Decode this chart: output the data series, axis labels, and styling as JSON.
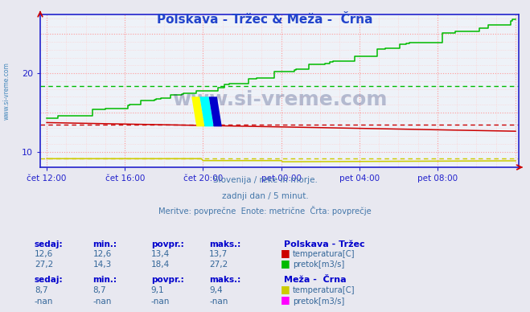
{
  "title": "Polskava - Tržec & Meža -  Črna",
  "bg_color": "#e8e8f0",
  "plot_bg_color": "#eef2f8",
  "subtitle1": "Slovenija / reke in morje.",
  "subtitle2": "zadnji dan / 5 minut.",
  "subtitle3": "Meritve: povprečne  Enote: metrične  Črta: povprečje",
  "watermark": "www.si-vreme.com",
  "station1_name": "Polskava - Tržec",
  "station2_name": "Meža -  Črna",
  "label_headers": [
    "sedaj:",
    "min.:",
    "povpr.:",
    "maks.:"
  ],
  "s1_temp_vals": [
    "12,6",
    "12,6",
    "13,4",
    "13,7"
  ],
  "s1_flow_vals": [
    "27,2",
    "14,3",
    "18,4",
    "27,2"
  ],
  "s2_temp_vals": [
    "8,7",
    "8,7",
    "9,1",
    "9,4"
  ],
  "s2_flow_vals": [
    "-nan",
    "-nan",
    "-nan",
    "-nan"
  ],
  "s1_temp_color": "#cc0000",
  "s1_flow_color": "#00bb00",
  "s2_temp_color": "#cccc00",
  "s2_flow_color": "#ff00ff",
  "avg_s1_temp": 13.4,
  "avg_s1_flow": 18.4,
  "avg_s2_temp": 9.1,
  "ylim": [
    8.0,
    27.5
  ],
  "yticks": [
    10,
    20
  ],
  "xtick_labels": [
    "čet 12:00",
    "čet 16:00",
    "čet 20:00",
    "pet 00:00",
    "pet 04:00",
    "pet 08:00"
  ],
  "xtick_positions": [
    0,
    240,
    480,
    720,
    960,
    1200
  ],
  "xlim": [
    -20,
    1450
  ],
  "spine_color": "#2222cc",
  "tick_label_color": "#2222cc",
  "title_color": "#2244cc",
  "info_color": "#4477aa",
  "table_header_color": "#0000cc",
  "table_val_color": "#336699",
  "grid_major_color": "#ff9999",
  "grid_minor_color": "#ffcccc",
  "sidewater_color": "#4488bb"
}
